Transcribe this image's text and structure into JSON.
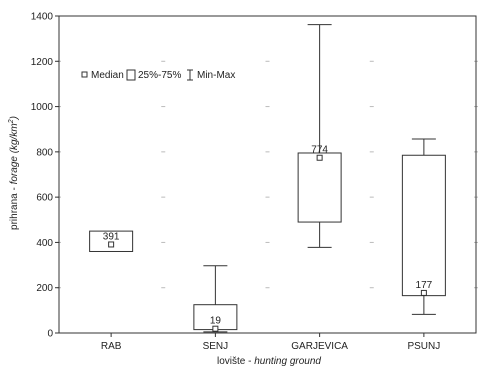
{
  "chart_data": {
    "type": "boxplot",
    "xlabel_main": "lovište - ",
    "xlabel_italic": "hunting ground",
    "ylabel_main": "prihrana - ",
    "ylabel_italic": "forage",
    "ylabel_unit_open": " (kg/km",
    "ylabel_unit_sup": "2",
    "ylabel_unit_close": ")",
    "ylim": [
      0,
      1400
    ],
    "yticks": [
      "0",
      "200",
      "400",
      "600",
      "800",
      "1000",
      "1200",
      "1400"
    ],
    "categories": [
      "RAB",
      "SENJ",
      "GARJEVICA",
      "PSUNJ"
    ],
    "boxes": [
      {
        "category": "RAB",
        "min": 360,
        "q1": 360,
        "median": 391,
        "q3": 450,
        "max": 450,
        "label": "391"
      },
      {
        "category": "SENJ",
        "min": 5,
        "q1": 15,
        "median": 19,
        "q3": 125,
        "max": 297,
        "label": "19"
      },
      {
        "category": "GARJEVICA",
        "min": 378,
        "q1": 490,
        "median": 774,
        "q3": 795,
        "max": 1362,
        "label": "774"
      },
      {
        "category": "PSUNJ",
        "min": 82,
        "q1": 165,
        "median": 177,
        "q3": 785,
        "max": 857,
        "label": "177"
      }
    ],
    "legend": {
      "median": "Median",
      "box": "25%-75%",
      "whisker": "Min-Max",
      "placement": "upper-left"
    },
    "grid": "dotted"
  }
}
